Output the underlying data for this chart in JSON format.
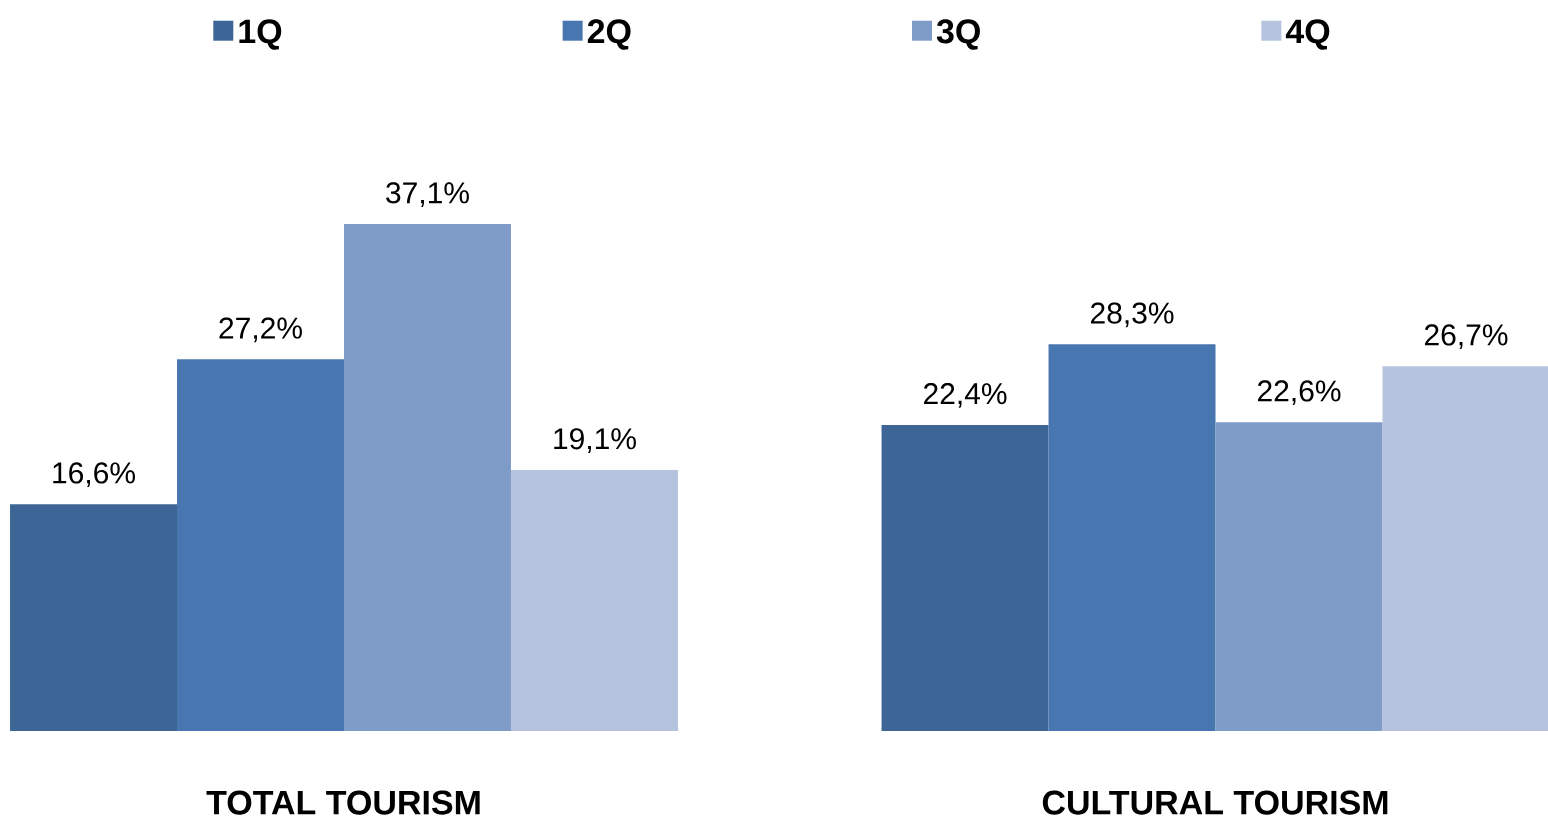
{
  "chart_data": {
    "type": "bar",
    "categories": [
      "TOTAL TOURISM",
      "CULTURAL TOURISM"
    ],
    "legend": "top",
    "series": [
      {
        "name": "1Q",
        "color": "#3d6696",
        "values": [
          16.6,
          22.4
        ],
        "value_labels": [
          "16,6%",
          "22,4%"
        ]
      },
      {
        "name": "2Q",
        "color": "#4876b0",
        "values": [
          27.2,
          28.3
        ],
        "value_labels": [
          "27,2%",
          "28,3%"
        ]
      },
      {
        "name": "3Q",
        "color": "#7f9cc8",
        "values": [
          37.1,
          22.6
        ],
        "value_labels": [
          "37,1%",
          "22,6%"
        ]
      },
      {
        "name": "4Q",
        "color": "#b5c3de",
        "values": [
          19.1,
          26.7
        ],
        "value_labels": [
          "19,1%",
          "26,7%"
        ]
      }
    ]
  }
}
